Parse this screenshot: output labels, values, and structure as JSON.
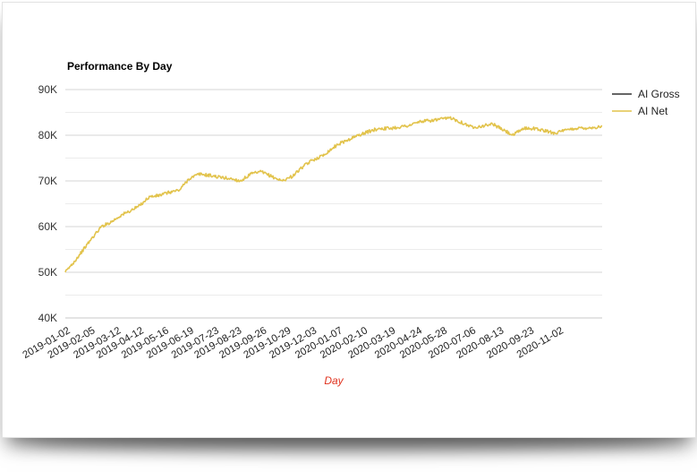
{
  "chart_data": {
    "type": "line",
    "title": "Performance By Day",
    "xlabel": "Day",
    "ylabel": "",
    "ylim": [
      40000,
      90000
    ],
    "y_ticks": [
      "40K",
      "50K",
      "60K",
      "70K",
      "80K",
      "90K"
    ],
    "y_tick_values": [
      40000,
      50000,
      60000,
      70000,
      80000,
      90000
    ],
    "x_range": [
      "2019-01-02",
      "2020-12-31"
    ],
    "x_ticks": [
      "2019-01-02",
      "2019-02-05",
      "2019-03-12",
      "2019-04-12",
      "2019-05-16",
      "2019-06-19",
      "2019-07-23",
      "2019-08-23",
      "2019-09-26",
      "2019-10-29",
      "2019-12-03",
      "2020-01-07",
      "2020-02-10",
      "2020-03-19",
      "2020-04-24",
      "2020-05-28",
      "2020-07-06",
      "2020-08-13",
      "2020-09-23",
      "2020-11-02"
    ],
    "grid": true,
    "legend_position": "right",
    "series": [
      {
        "name": "AI Gross",
        "color": "#333333",
        "x": [],
        "values": []
      },
      {
        "name": "AI Net",
        "color": "#e2c34c",
        "x": [
          "2019-01-02",
          "2019-01-15",
          "2019-02-05",
          "2019-02-20",
          "2019-03-05",
          "2019-03-19",
          "2019-04-01",
          "2019-04-12",
          "2019-04-26",
          "2019-05-09",
          "2019-05-23",
          "2019-06-06",
          "2019-06-19",
          "2019-07-03",
          "2019-07-17",
          "2019-07-31",
          "2019-08-14",
          "2019-08-28",
          "2019-09-11",
          "2019-09-25",
          "2019-10-09",
          "2019-10-23",
          "2019-11-06",
          "2019-11-20",
          "2019-12-03",
          "2019-12-17",
          "2020-01-07",
          "2020-01-21",
          "2020-02-04",
          "2020-02-18",
          "2020-03-03",
          "2020-03-17",
          "2020-03-31",
          "2020-04-14",
          "2020-04-28",
          "2020-05-12",
          "2020-05-26",
          "2020-06-09",
          "2020-06-23",
          "2020-07-07",
          "2020-07-21",
          "2020-08-04",
          "2020-08-18",
          "2020-09-01",
          "2020-09-15",
          "2020-09-29",
          "2020-10-13",
          "2020-10-27",
          "2020-11-10",
          "2020-11-24",
          "2020-12-08",
          "2020-12-22",
          "2020-12-31"
        ],
        "values": [
          50000,
          52500,
          57000,
          60000,
          61000,
          62500,
          63500,
          64500,
          66500,
          66800,
          67500,
          68000,
          70500,
          71500,
          71200,
          70800,
          70500,
          70000,
          71500,
          72000,
          71000,
          70000,
          71000,
          73000,
          74500,
          75500,
          78000,
          79000,
          80000,
          80800,
          81500,
          81500,
          81800,
          82200,
          83000,
          83200,
          83500,
          83800,
          82800,
          81800,
          82000,
          82500,
          81200,
          80000,
          81500,
          81500,
          81000,
          80500,
          81000,
          81500,
          81600,
          81700,
          82000
        ]
      }
    ]
  }
}
